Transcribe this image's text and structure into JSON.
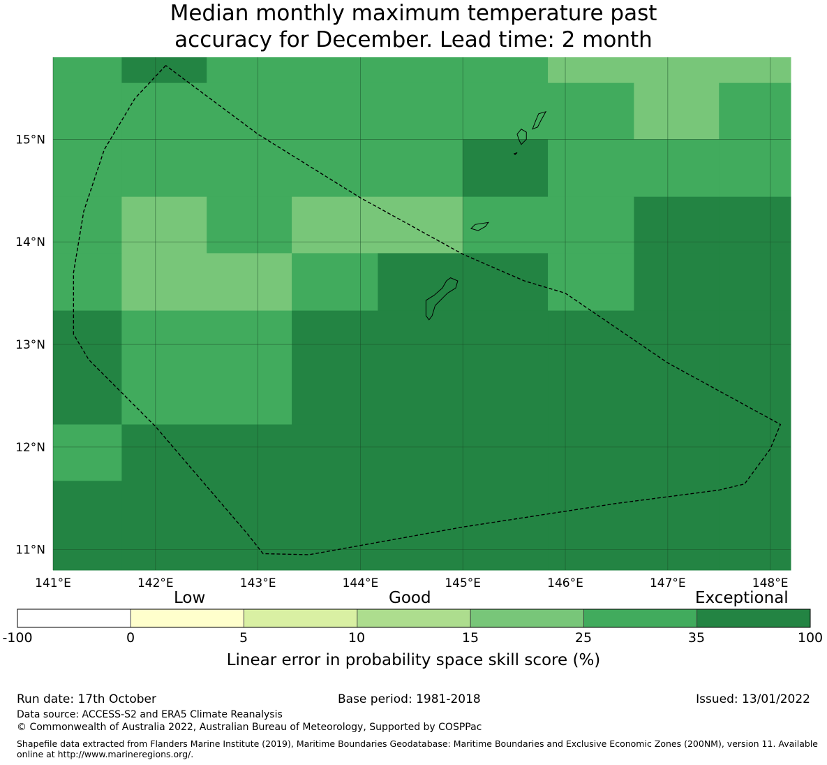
{
  "title_line1": "Median monthly maximum temperature past",
  "title_line2": "accuracy for December. Lead time: 2 month",
  "colors": {
    "c2": "#41ab5d",
    "c3": "#238443",
    "c1": "#78c679",
    "ocean_grid": "#1a4d28"
  },
  "map": {
    "x_ticks": [
      "141°E",
      "142°E",
      "143°E",
      "144°E",
      "145°E",
      "146°E",
      "147°E",
      "148°E"
    ],
    "y_ticks": [
      "15°N",
      "14°N",
      "13°N",
      "12°N",
      "11°N"
    ],
    "x_tick_values": [
      141,
      142,
      143,
      144,
      145,
      146,
      147,
      148
    ],
    "y_tick_values": [
      15,
      14,
      13,
      12,
      11
    ],
    "lon_range": [
      141.0,
      148.2
    ],
    "lat_range": [
      10.8,
      15.8
    ],
    "cell_boundaries_lon": [
      141.0,
      141.67,
      142.5,
      143.33,
      144.17,
      145.0,
      145.83,
      146.67,
      147.5,
      148.2
    ],
    "cell_boundaries_lat": [
      15.8,
      15.55,
      15.0,
      14.44,
      13.89,
      13.33,
      12.22,
      11.67,
      10.8
    ],
    "cells": [
      [
        2,
        3,
        2,
        2,
        2,
        2,
        1,
        1,
        1
      ],
      [
        2,
        2,
        2,
        2,
        2,
        2,
        2,
        1,
        2
      ],
      [
        2,
        2,
        2,
        2,
        2,
        3,
        2,
        2,
        2
      ],
      [
        2,
        1,
        2,
        1,
        1,
        2,
        2,
        3,
        3
      ],
      [
        2,
        1,
        1,
        2,
        3,
        3,
        2,
        3,
        3
      ],
      [
        3,
        2,
        2,
        3,
        3,
        3,
        3,
        3,
        3
      ],
      [
        2,
        3,
        3,
        3,
        3,
        3,
        3,
        3,
        3
      ],
      [
        3,
        3,
        3,
        3,
        3,
        3,
        3,
        3,
        3
      ]
    ],
    "eez_boundary": [
      [
        142.1,
        15.72
      ],
      [
        141.8,
        15.4
      ],
      [
        141.5,
        14.9
      ],
      [
        141.3,
        14.3
      ],
      [
        141.2,
        13.7
      ],
      [
        141.2,
        13.1
      ],
      [
        141.35,
        12.85
      ],
      [
        142.0,
        12.2
      ],
      [
        142.9,
        11.15
      ],
      [
        143.05,
        10.96
      ],
      [
        143.5,
        10.95
      ],
      [
        145.0,
        11.22
      ],
      [
        146.5,
        11.45
      ],
      [
        147.5,
        11.58
      ],
      [
        147.75,
        11.64
      ],
      [
        148.0,
        11.98
      ],
      [
        148.1,
        12.22
      ],
      [
        147.0,
        12.82
      ],
      [
        146.0,
        13.5
      ],
      [
        145.6,
        13.62
      ],
      [
        145.0,
        13.88
      ],
      [
        144.0,
        14.43
      ],
      [
        143.0,
        15.05
      ],
      [
        142.1,
        15.72
      ]
    ],
    "islands": [
      [
        [
          144.88,
          13.65
        ],
        [
          144.95,
          13.62
        ],
        [
          144.93,
          13.55
        ],
        [
          144.85,
          13.5
        ],
        [
          144.8,
          13.45
        ],
        [
          144.73,
          13.38
        ],
        [
          144.7,
          13.28
        ],
        [
          144.67,
          13.24
        ],
        [
          144.64,
          13.28
        ],
        [
          144.64,
          13.43
        ],
        [
          144.72,
          13.48
        ],
        [
          144.8,
          13.55
        ],
        [
          144.84,
          13.62
        ],
        [
          144.88,
          13.65
        ]
      ],
      [
        [
          145.25,
          14.19
        ],
        [
          145.12,
          14.17
        ],
        [
          145.08,
          14.13
        ],
        [
          145.15,
          14.11
        ],
        [
          145.22,
          14.15
        ],
        [
          145.25,
          14.19
        ]
      ],
      [
        [
          145.57,
          14.95
        ],
        [
          145.62,
          15.0
        ],
        [
          145.62,
          15.07
        ],
        [
          145.57,
          15.1
        ],
        [
          145.53,
          15.05
        ],
        [
          145.55,
          14.99
        ],
        [
          145.57,
          14.95
        ]
      ],
      [
        [
          145.81,
          15.27
        ],
        [
          145.74,
          15.25
        ],
        [
          145.71,
          15.18
        ],
        [
          145.68,
          15.1
        ],
        [
          145.73,
          15.12
        ],
        [
          145.76,
          15.18
        ],
        [
          145.81,
          15.27
        ]
      ],
      [
        [
          145.5,
          14.86
        ],
        [
          145.53,
          14.87
        ],
        [
          145.51,
          14.85
        ],
        [
          145.5,
          14.86
        ]
      ]
    ]
  },
  "colorbar": {
    "categories": [
      "Low",
      "Good",
      "Exceptional"
    ],
    "ticks": [
      "-100",
      "0",
      "5",
      "10",
      "15",
      "25",
      "35",
      "100"
    ],
    "colors": [
      "#ffffff",
      "#ffffcc",
      "#d9f0a3",
      "#addd8e",
      "#78c679",
      "#41ab5d",
      "#238443"
    ],
    "label": "Linear error in probability space skill score (%)"
  },
  "footer": {
    "run_date": "Run date: 17th October",
    "base_period": "Base period: 1981-2018",
    "issued": "Issued: 13/01/2022",
    "data_source": "Data source: ACCESS-S2 and ERA5 Climate Reanalysis",
    "copyright": "© Commonwealth of Australia 2022, Australian Bureau of Meteorology, Supported by COSPPac",
    "shapefile": "Shapefile data extracted from Flanders Marine Institute (2019), Maritime Boundaries Geodatabase: Maritime Boundaries and Exclusive Economic Zones (200NM), version 11. Available online at http://www.marineregions.org/."
  }
}
